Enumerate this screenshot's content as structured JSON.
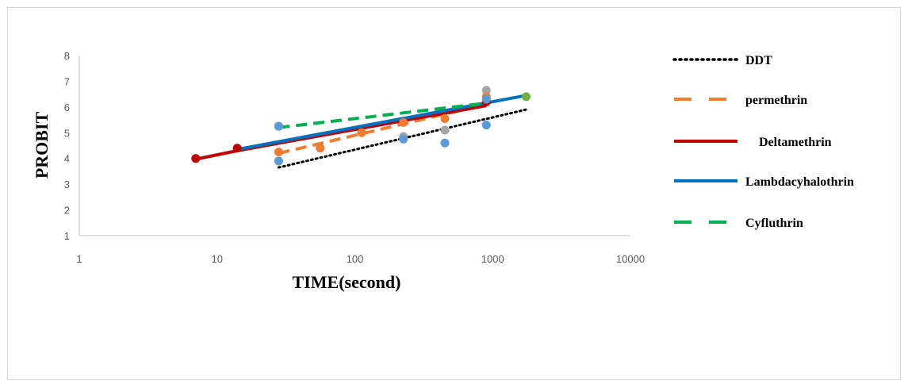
{
  "chart_data": {
    "type": "scatter",
    "xlabel": "TIME(second)",
    "ylabel": "PROBIT",
    "xscale": "log",
    "xlim": [
      1,
      10000
    ],
    "ylim": [
      1,
      8
    ],
    "x_ticks": [
      "1",
      "10",
      "100",
      "1000",
      "10000"
    ],
    "y_ticks": [
      "1",
      "2",
      "3",
      "4",
      "5",
      "6",
      "7",
      "8"
    ],
    "grid": false,
    "legend_position": "right",
    "series": [
      {
        "name": "DDT",
        "color": "#000000",
        "dash": "dotted",
        "point_color": "#a5a5a5",
        "points": [
          [
            7,
            4.0
          ],
          [
            28,
            5.25
          ],
          [
            225,
            4.85
          ],
          [
            450,
            5.1
          ],
          [
            900,
            6.65
          ]
        ],
        "trend": [
          [
            28,
            3.65
          ],
          [
            1750,
            5.9
          ]
        ]
      },
      {
        "name": "permethrin",
        "color": "#ed7d31",
        "dash": "dashed",
        "point_color": "#ed7d31",
        "points": [
          [
            28,
            4.25
          ],
          [
            56,
            4.4
          ],
          [
            112,
            5.0
          ],
          [
            225,
            5.4
          ],
          [
            450,
            5.55
          ],
          [
            900,
            6.4
          ]
        ],
        "trend": [
          [
            28,
            4.2
          ],
          [
            900,
            6.1
          ]
        ]
      },
      {
        "name": "Deltamethrin",
        "color": "#c00000",
        "dash": "solid",
        "point_color": "#c00000",
        "points": [
          [
            7,
            4.0
          ],
          [
            14,
            4.4
          ],
          [
            900,
            6.2
          ]
        ],
        "trend": [
          [
            7,
            3.97
          ],
          [
            14,
            4.3
          ],
          [
            900,
            6.05
          ]
        ]
      },
      {
        "name": "Lambdacyhalothrin",
        "color": "#0070c0",
        "dash": "solid",
        "point_color": "#5b9bd5",
        "points": [
          [
            28,
            3.9
          ],
          [
            28,
            5.25
          ],
          [
            225,
            4.75
          ],
          [
            450,
            4.6
          ],
          [
            900,
            5.3
          ],
          [
            900,
            6.3
          ]
        ],
        "trend": [
          [
            14,
            4.35
          ],
          [
            1750,
            6.45
          ]
        ]
      },
      {
        "name": "Cyfluthrin",
        "color": "#00b050",
        "dash": "dashed",
        "point_color": "#70ad47",
        "points": [
          [
            1750,
            6.4
          ]
        ],
        "trend": [
          [
            28,
            5.2
          ],
          [
            900,
            6.15
          ]
        ]
      }
    ]
  }
}
